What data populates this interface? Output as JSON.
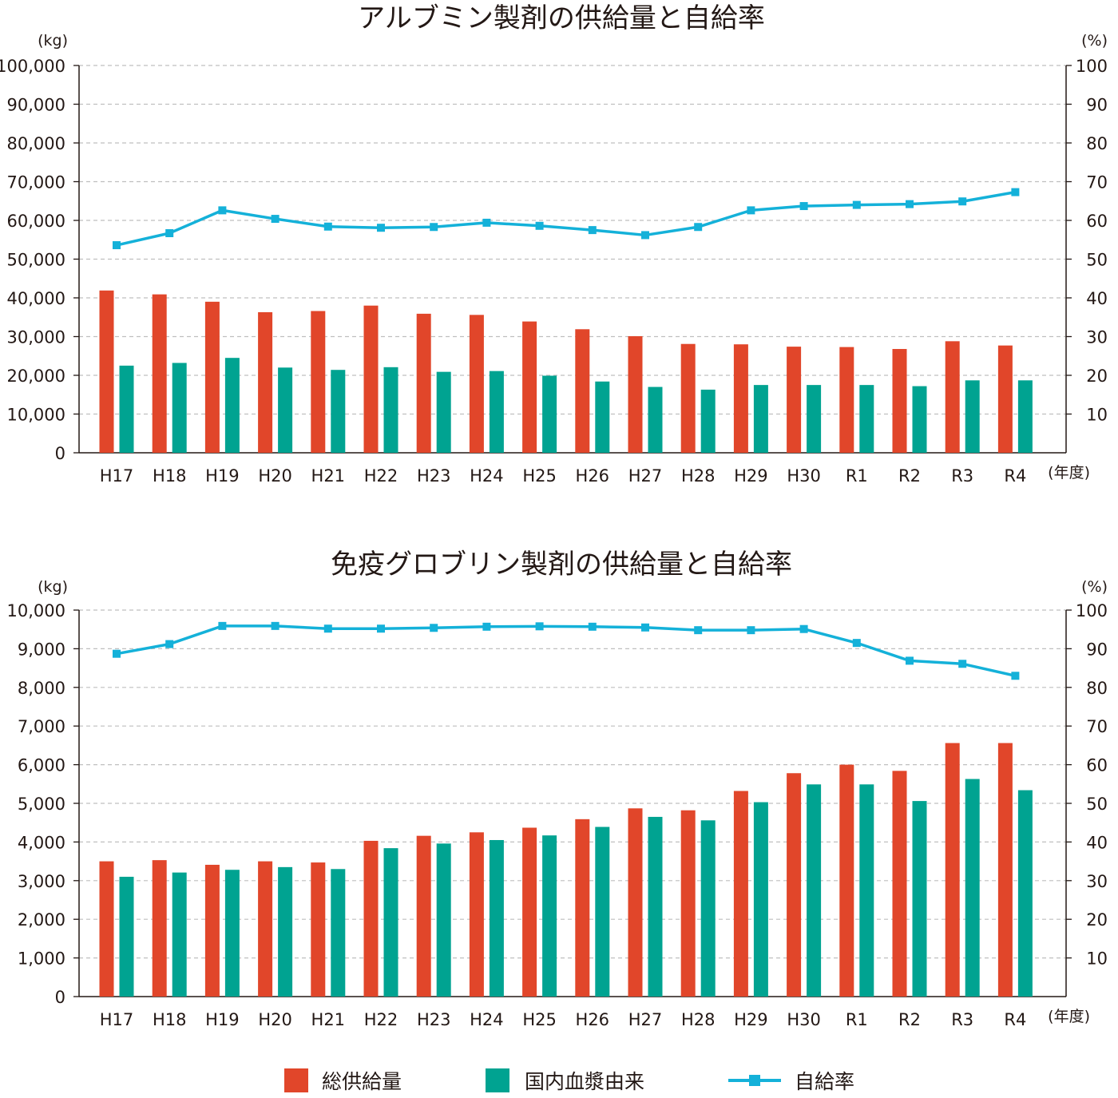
{
  "colors": {
    "total_supply": "#e1462a",
    "domestic_plasma": "#00a391",
    "self_sufficiency": "#14b1d9",
    "grid": "#bfbfbf",
    "axis": "#231815"
  },
  "legend": {
    "total_supply": "総供給量",
    "domestic_plasma": "国内血漿由来",
    "self_sufficiency": "自給率"
  },
  "chart_data": [
    {
      "type": "bar",
      "title": "アルブミン製剤の供給量と自給率",
      "ylabel_left": "(kg)",
      "ylabel_right": "(%)",
      "xlabel": "(年度)",
      "categories": [
        "H17",
        "H18",
        "H19",
        "H20",
        "H21",
        "H22",
        "H23",
        "H24",
        "H25",
        "H26",
        "H27",
        "H28",
        "H29",
        "H30",
        "R1",
        "R2",
        "R3",
        "R4"
      ],
      "ylim_left": [
        0,
        100000
      ],
      "ylim_right": [
        0,
        100
      ],
      "yticks_left": [
        "0",
        "10,000",
        "20,000",
        "30,000",
        "40,000",
        "50,000",
        "60,000",
        "70,000",
        "80,000",
        "90,000",
        "100,000"
      ],
      "yticks_right": [
        "",
        "10",
        "20",
        "30",
        "40",
        "50",
        "60",
        "70",
        "80",
        "90",
        "100"
      ],
      "grid": true,
      "series": [
        {
          "name": "総供給量",
          "axis": "left",
          "type": "bar",
          "values": [
            41900,
            40900,
            39000,
            36300,
            36600,
            38000,
            35900,
            35600,
            33900,
            31900,
            30100,
            28100,
            28000,
            27400,
            27300,
            26800,
            28800,
            27700
          ]
        },
        {
          "name": "国内血漿由来",
          "axis": "left",
          "type": "bar",
          "values": [
            22500,
            23200,
            24500,
            22000,
            21400,
            22100,
            20900,
            21100,
            19900,
            18400,
            17000,
            16300,
            17500,
            17500,
            17500,
            17200,
            18700,
            18700
          ]
        },
        {
          "name": "自給率",
          "axis": "right",
          "type": "line",
          "values": [
            53.6,
            56.7,
            62.6,
            60.4,
            58.4,
            58.1,
            58.3,
            59.4,
            58.6,
            57.5,
            56.2,
            58.3,
            62.6,
            63.7,
            64.0,
            64.2,
            64.9,
            67.3
          ]
        }
      ]
    },
    {
      "type": "bar",
      "title": "免疫グロブリン製剤の供給量と自給率",
      "ylabel_left": "(kg)",
      "ylabel_right": "(%)",
      "xlabel": "(年度)",
      "categories": [
        "H17",
        "H18",
        "H19",
        "H20",
        "H21",
        "H22",
        "H23",
        "H24",
        "H25",
        "H26",
        "H27",
        "H28",
        "H29",
        "H30",
        "R1",
        "R2",
        "R3",
        "R4"
      ],
      "ylim_left": [
        0,
        10000
      ],
      "ylim_right": [
        0,
        100
      ],
      "yticks_left": [
        "0",
        "1,000",
        "2,000",
        "3,000",
        "4,000",
        "5,000",
        "6,000",
        "7,000",
        "8,000",
        "9,000",
        "10,000"
      ],
      "yticks_right": [
        "",
        "10",
        "20",
        "30",
        "40",
        "50",
        "60",
        "70",
        "80",
        "90",
        "100"
      ],
      "grid": true,
      "series": [
        {
          "name": "総供給量",
          "axis": "left",
          "type": "bar",
          "values": [
            3500,
            3530,
            3410,
            3500,
            3470,
            4030,
            4160,
            4250,
            4370,
            4590,
            4870,
            4820,
            5320,
            5780,
            6000,
            5840,
            6560,
            6560
          ]
        },
        {
          "name": "国内血漿由来",
          "axis": "left",
          "type": "bar",
          "values": [
            3100,
            3210,
            3280,
            3350,
            3300,
            3840,
            3960,
            4050,
            4170,
            4390,
            4650,
            4560,
            5030,
            5490,
            5490,
            5060,
            5630,
            5340
          ]
        },
        {
          "name": "自給率",
          "axis": "right",
          "type": "line",
          "values": [
            88.7,
            91.2,
            95.9,
            95.9,
            95.2,
            95.2,
            95.4,
            95.7,
            95.8,
            95.7,
            95.5,
            94.8,
            94.8,
            95.1,
            91.5,
            86.9,
            86.1,
            83.0
          ]
        }
      ]
    }
  ]
}
